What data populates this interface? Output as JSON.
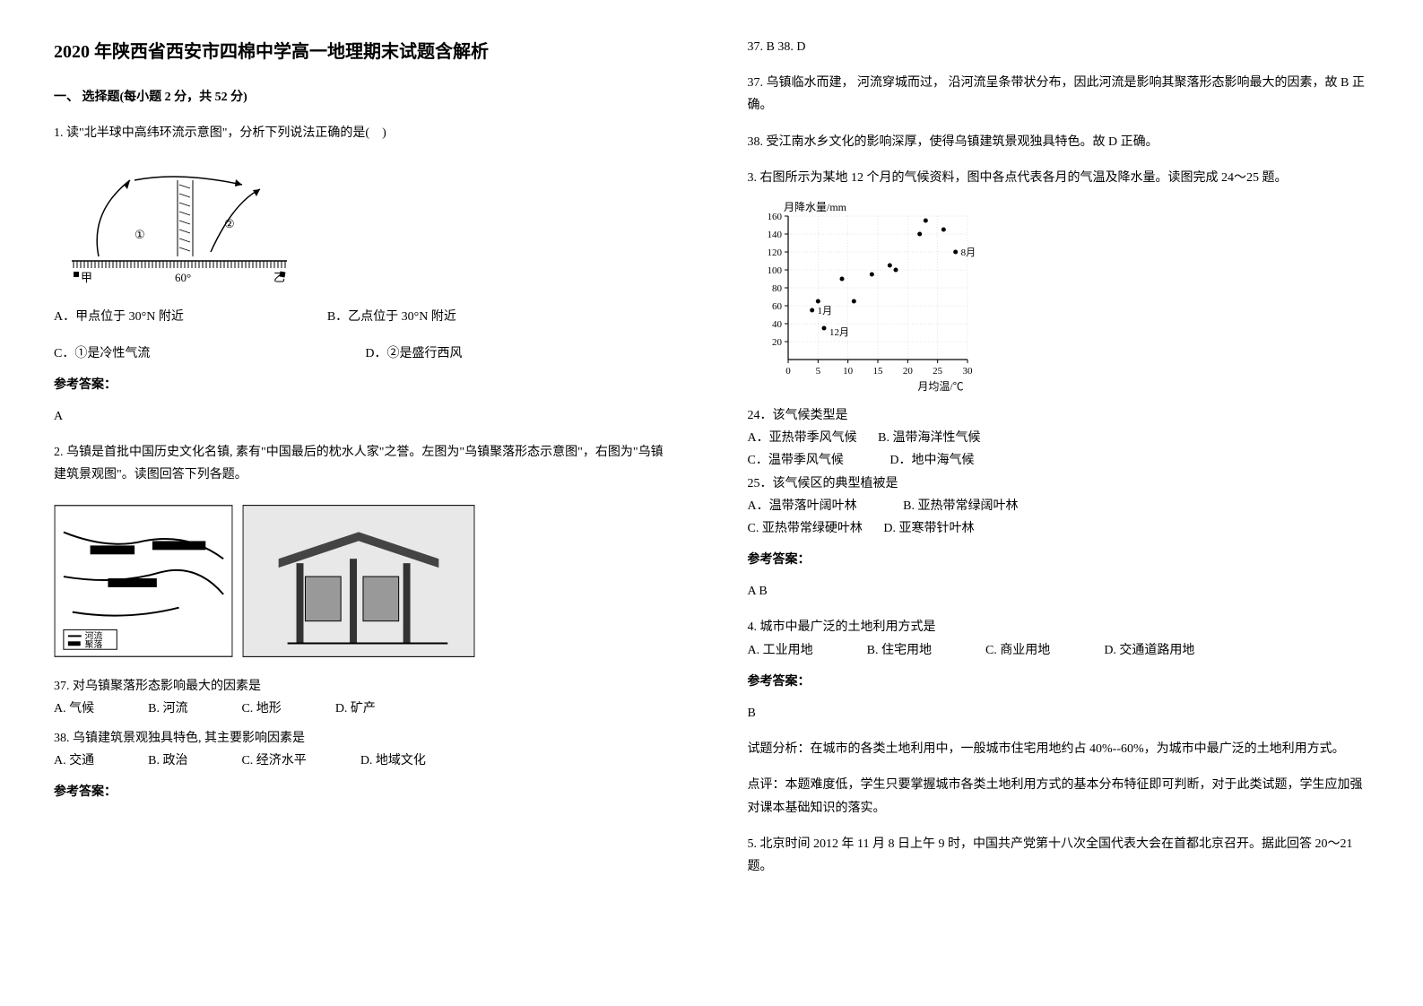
{
  "title": "2020 年陕西省西安市四棉中学高一地理期末试题含解析",
  "section1": {
    "header": "一、 选择题(每小题 2 分，共 52 分)"
  },
  "q1": {
    "text": "1. 读\"北半球中高纬环流示意图\"，分析下列说法正确的是(　)",
    "optA": "A．甲点位于 30°N 附近",
    "optB": "B．乙点位于 30°N 附近",
    "optC": "C．①是冷性气流",
    "optD": "D．②是盛行西风",
    "answerLabel": "参考答案：",
    "answer": "A",
    "diagram": {
      "label_jia": "甲",
      "label_yi": "乙",
      "label_60": "60°",
      "label_1": "①",
      "label_2": "②"
    }
  },
  "q2": {
    "text": "2. 乌镇是首批中国历史文化名镇, 素有\"中国最后的枕水人家\"之誉。左图为\"乌镇聚落形态示意图\"，右图为\"乌镇建筑景观图\"。读图回答下列各题。",
    "sub37": {
      "text": "37.  对乌镇聚落形态影响最大的因素是",
      "optA": "A.  气候",
      "optB": "B.  河流",
      "optC": "C.  地形",
      "optD": "D.  矿产"
    },
    "sub38": {
      "text": "38.  乌镇建筑景观独具特色, 其主要影响因素是",
      "optA": "A.  交通",
      "optB": "B.  政治",
      "optC": "C.  经济水平",
      "optD": "D.  地域文化"
    },
    "answerLabel": "参考答案：",
    "answerLine": "37. B        38. D",
    "analysis37": "37.  乌镇临水而建， 河流穿城而过， 沿河流呈条带状分布，因此河流是影响其聚落形态影响最大的因素，故 B 正确。",
    "analysis38": "38.  受江南水乡文化的影响深厚，使得乌镇建筑景观独具特色。故 D 正确。"
  },
  "q3": {
    "text": "3. 右图所示为某地 12 个月的气候资料，图中各点代表各月的气温及降水量。读图完成 24～25 题。",
    "chart": {
      "ylabel": "月降水量/mm",
      "xlabel": "月均温/℃",
      "yticks": [
        20,
        40,
        60,
        80,
        100,
        120,
        140,
        160
      ],
      "xticks": [
        0,
        5,
        10,
        15,
        20,
        25,
        30
      ],
      "labels": {
        "jan": "1月",
        "aug": "8月",
        "dec": "12月"
      },
      "points": [
        {
          "x": 4,
          "y": 55
        },
        {
          "x": 5,
          "y": 65
        },
        {
          "x": 9,
          "y": 90
        },
        {
          "x": 14,
          "y": 95
        },
        {
          "x": 18,
          "y": 100
        },
        {
          "x": 22,
          "y": 140
        },
        {
          "x": 26,
          "y": 145
        },
        {
          "x": 28,
          "y": 120
        },
        {
          "x": 23,
          "y": 155
        },
        {
          "x": 17,
          "y": 105
        },
        {
          "x": 11,
          "y": 65
        },
        {
          "x": 6,
          "y": 35
        }
      ],
      "point_color": "#000000",
      "background_color": "#ffffff",
      "grid_color": "#cccccc",
      "label_fontsize": 12
    },
    "sub24": {
      "text": "24．该气候类型是",
      "optA": "A．亚热带季风气候",
      "optB": "B.  温带海洋性气候",
      "optC": "C．温带季风气候",
      "optD": "D．地中海气候"
    },
    "sub25": {
      "text": "25．该气候区的典型植被是",
      "optA": "A．温带落叶阔叶林",
      "optB": "B.  亚热带常绿阔叶林",
      "optC": "C.  亚热带常绿硬叶林",
      "optD": "D.  亚寒带针叶林"
    },
    "answerLabel": "参考答案：",
    "answer": "A B"
  },
  "q4": {
    "text": "4. 城市中最广泛的土地利用方式是",
    "optA": "A.  工业用地",
    "optB": "B.  住宅用地",
    "optC": "C.  商业用地",
    "optD": "D.  交通道路用地",
    "answerLabel": "参考答案：",
    "answer": "B",
    "analysis1": "试题分析：在城市的各类土地利用中，一般城市住宅用地约占 40%--60%，为城市中最广泛的土地利用方式。",
    "analysis2": "点评：本题难度低，学生只要掌握城市各类土地利用方式的基本分布特征即可判断，对于此类试题，学生应加强对课本基础知识的落实。"
  },
  "q5": {
    "text": "5. 北京时间 2012 年 11 月 8 日上午 9 时，中国共产党第十八次全国代表大会在首都北京召开。据此回答 20～21 题。"
  }
}
